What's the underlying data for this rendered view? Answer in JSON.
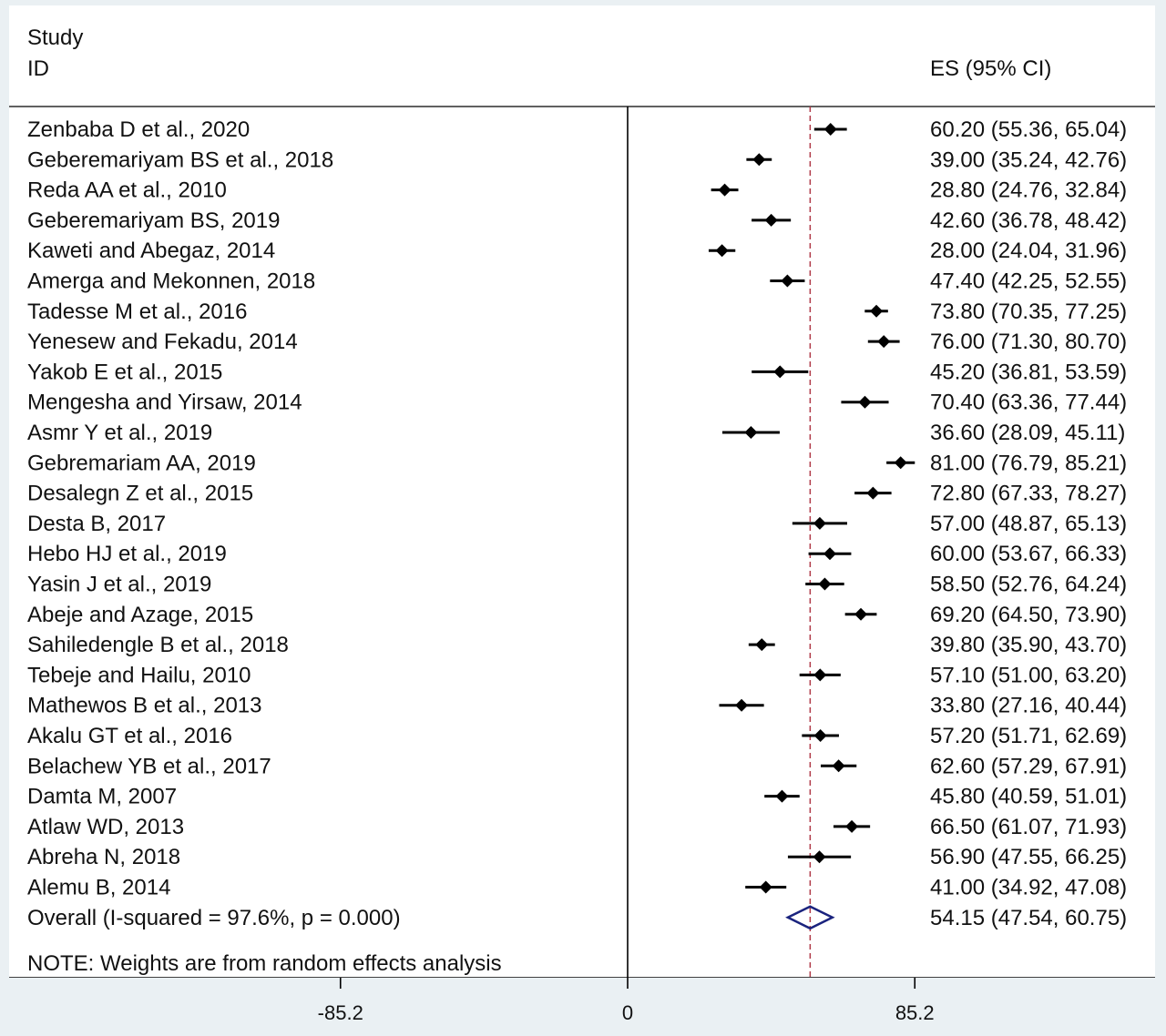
{
  "header": {
    "study_label": "Study",
    "id_label": "ID",
    "es_label": "ES (95% CI)"
  },
  "note": "NOTE: Weights are from random effects analysis",
  "chart_data": {
    "type": "forest",
    "xlim": [
      -125,
      160
    ],
    "ticks": [
      {
        "value": -85.2,
        "label": "-85.2"
      },
      {
        "value": 0,
        "label": "0"
      },
      {
        "value": 85.2,
        "label": "85.2"
      }
    ],
    "null_line": 0,
    "pooled_line": 54.15,
    "studies": [
      {
        "label": "Zenbaba D et al., 2020",
        "es": 60.2,
        "lo": 55.36,
        "hi": 65.04,
        "es_text": "60.20 (55.36, 65.04)"
      },
      {
        "label": "Geberemariyam BS et al., 2018",
        "es": 39.0,
        "lo": 35.24,
        "hi": 42.76,
        "es_text": "39.00 (35.24, 42.76)"
      },
      {
        "label": "Reda AA et al., 2010",
        "es": 28.8,
        "lo": 24.76,
        "hi": 32.84,
        "es_text": "28.80 (24.76, 32.84)"
      },
      {
        "label": "Geberemariyam BS, 2019",
        "es": 42.6,
        "lo": 36.78,
        "hi": 48.42,
        "es_text": "42.60 (36.78, 48.42)"
      },
      {
        "label": "Kaweti and  Abegaz, 2014",
        "es": 28.0,
        "lo": 24.04,
        "hi": 31.96,
        "es_text": "28.00 (24.04, 31.96)"
      },
      {
        "label": "Amerga and Mekonnen, 2018",
        "es": 47.4,
        "lo": 42.25,
        "hi": 52.55,
        "es_text": "47.40 (42.25, 52.55)"
      },
      {
        "label": "Tadesse M et al., 2016",
        "es": 73.8,
        "lo": 70.35,
        "hi": 77.25,
        "es_text": "73.80 (70.35, 77.25)"
      },
      {
        "label": "Yenesew and Fekadu, 2014",
        "es": 76.0,
        "lo": 71.3,
        "hi": 80.7,
        "es_text": "76.00 (71.30, 80.70)"
      },
      {
        "label": "Yakob E et al., 2015",
        "es": 45.2,
        "lo": 36.81,
        "hi": 53.59,
        "es_text": "45.20 (36.81, 53.59)"
      },
      {
        "label": "Mengesha and Yirsaw, 2014",
        "es": 70.4,
        "lo": 63.36,
        "hi": 77.44,
        "es_text": "70.40 (63.36, 77.44)"
      },
      {
        "label": "Asmr Y et al., 2019",
        "es": 36.6,
        "lo": 28.09,
        "hi": 45.11,
        "es_text": "36.60 (28.09, 45.11)"
      },
      {
        "label": "Gebremariam AA, 2019",
        "es": 81.0,
        "lo": 76.79,
        "hi": 85.21,
        "es_text": "81.00 (76.79, 85.21)"
      },
      {
        "label": "Desalegn Z et al., 2015",
        "es": 72.8,
        "lo": 67.33,
        "hi": 78.27,
        "es_text": "72.80 (67.33, 78.27)"
      },
      {
        "label": "Desta B, 2017",
        "es": 57.0,
        "lo": 48.87,
        "hi": 65.13,
        "es_text": "57.00 (48.87, 65.13)"
      },
      {
        "label": "Hebo HJ et al., 2019",
        "es": 60.0,
        "lo": 53.67,
        "hi": 66.33,
        "es_text": "60.00 (53.67, 66.33)"
      },
      {
        "label": "Yasin J et al., 2019",
        "es": 58.5,
        "lo": 52.76,
        "hi": 64.24,
        "es_text": "58.50 (52.76, 64.24)"
      },
      {
        "label": "Abeje and Azage, 2015",
        "es": 69.2,
        "lo": 64.5,
        "hi": 73.9,
        "es_text": "69.20 (64.50, 73.90)"
      },
      {
        "label": "Sahiledengle B et al., 2018",
        "es": 39.8,
        "lo": 35.9,
        "hi": 43.7,
        "es_text": "39.80 (35.90, 43.70)"
      },
      {
        "label": "Tebeje and Hailu, 2010",
        "es": 57.1,
        "lo": 51.0,
        "hi": 63.2,
        "es_text": "57.10 (51.00, 63.20)"
      },
      {
        "label": "Mathewos B et al., 2013",
        "es": 33.8,
        "lo": 27.16,
        "hi": 40.44,
        "es_text": "33.80 (27.16, 40.44)"
      },
      {
        "label": "Akalu GT et al., 2016",
        "es": 57.2,
        "lo": 51.71,
        "hi": 62.69,
        "es_text": "57.20 (51.71, 62.69)"
      },
      {
        "label": "Belachew YB et al., 2017",
        "es": 62.6,
        "lo": 57.29,
        "hi": 67.91,
        "es_text": "62.60 (57.29, 67.91)"
      },
      {
        "label": "Damta M, 2007",
        "es": 45.8,
        "lo": 40.59,
        "hi": 51.01,
        "es_text": "45.80 (40.59, 51.01)"
      },
      {
        "label": "Atlaw WD, 2013",
        "es": 66.5,
        "lo": 61.07,
        "hi": 71.93,
        "es_text": "66.50 (61.07, 71.93)"
      },
      {
        "label": "Abreha N, 2018",
        "es": 56.9,
        "lo": 47.55,
        "hi": 66.25,
        "es_text": "56.90 (47.55, 66.25)"
      },
      {
        "label": "Alemu B, 2014",
        "es": 41.0,
        "lo": 34.92,
        "hi": 47.08,
        "es_text": "41.00 (34.92, 47.08)"
      }
    ],
    "overall": {
      "label": "Overall  (I-squared = 97.6%, p = 0.000)",
      "es": 54.15,
      "lo": 47.54,
      "hi": 60.75,
      "es_text": "54.15 (47.54, 60.75)"
    },
    "colors": {
      "marker": "#000000",
      "pooled_line": "#b03a48",
      "diamond": "#1a237e",
      "axis": "#000000",
      "frame_bg": "#eaf0f3"
    }
  }
}
